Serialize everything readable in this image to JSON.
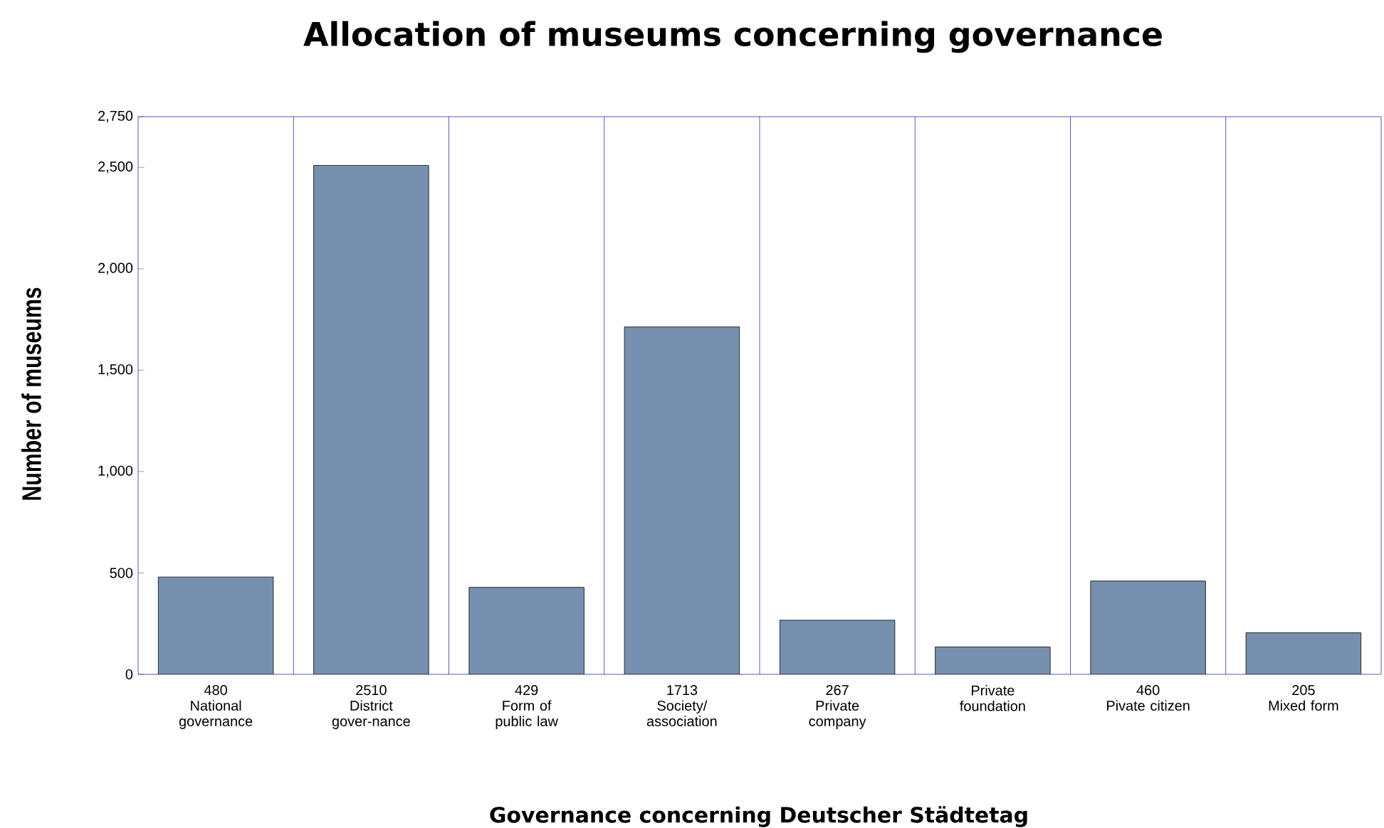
{
  "chart_data": {
    "type": "bar",
    "title": "Allocation of museums concerning governance",
    "xlabel": "Governance concerning Deutscher Städtetag",
    "ylabel": "Number of museums",
    "categories": [
      "National governance",
      "District gover-nance",
      "Form of public law",
      "Society/ association",
      "Private company",
      "Private foundation",
      "Pivate citizen",
      "Mixed form"
    ],
    "values": [
      480,
      2510,
      429,
      1713,
      267,
      135,
      460,
      205
    ],
    "value_labels": [
      "480",
      "2510",
      "429",
      "1713",
      "267",
      null,
      "460",
      "205"
    ],
    "color": "#7890b0",
    "ylim": [
      0,
      2750
    ],
    "yticks": [
      {
        "value": 0,
        "label": "0"
      },
      {
        "value": 500,
        "label": "500"
      },
      {
        "value": 1000,
        "label": "1,000"
      },
      {
        "value": 1500,
        "label": "1,500"
      },
      {
        "value": 2000,
        "label": "2,000"
      },
      {
        "value": 2500,
        "label": "2,500"
      },
      {
        "value": 2750,
        "label": "2,750"
      }
    ],
    "grid": "x"
  }
}
